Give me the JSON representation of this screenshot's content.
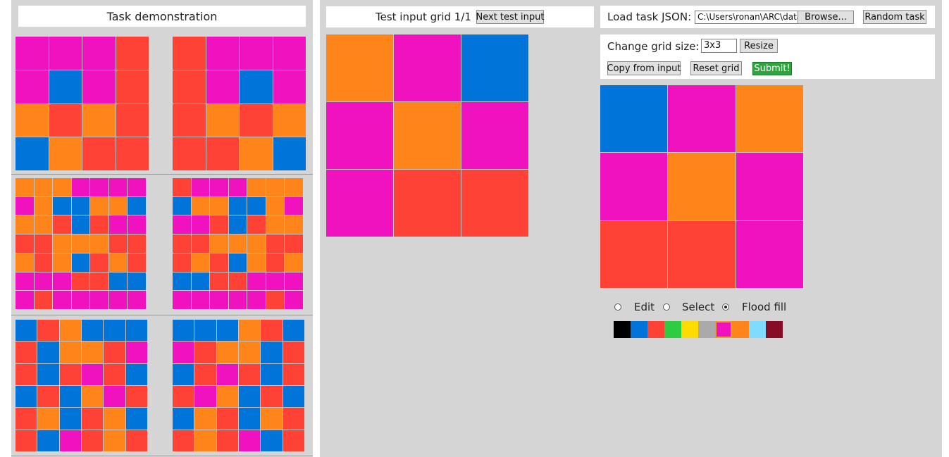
{
  "colors": {
    "0": "#000000",
    "1": "#0074d9",
    "2": "#ff4136",
    "3": "#2ecc40",
    "4": "#ffdc00",
    "5": "#aaaaaa",
    "6": "#f012be",
    "7": "#ff851b",
    "8": "#7fdbff",
    "9": "#870c25"
  },
  "demo": {
    "title": "Task demonstration",
    "pairs": [
      {
        "input": [
          [
            6,
            6,
            6,
            2
          ],
          [
            6,
            1,
            6,
            2
          ],
          [
            7,
            2,
            7,
            2
          ],
          [
            1,
            7,
            2,
            2
          ]
        ],
        "output": [
          [
            2,
            6,
            6,
            6
          ],
          [
            2,
            6,
            1,
            6
          ],
          [
            2,
            7,
            2,
            7
          ],
          [
            2,
            2,
            7,
            1
          ]
        ]
      },
      {
        "input": [
          [
            7,
            7,
            7,
            6,
            6,
            6,
            6
          ],
          [
            6,
            7,
            1,
            1,
            7,
            7,
            1
          ],
          [
            7,
            7,
            2,
            1,
            2,
            6,
            6
          ],
          [
            2,
            2,
            7,
            7,
            7,
            2,
            2
          ],
          [
            7,
            2,
            7,
            1,
            2,
            7,
            2
          ],
          [
            6,
            6,
            6,
            2,
            2,
            1,
            1
          ],
          [
            6,
            2,
            6,
            6,
            6,
            6,
            6
          ]
        ],
        "output": [
          [
            2,
            6,
            6,
            6,
            7,
            7,
            7
          ],
          [
            1,
            7,
            7,
            1,
            1,
            7,
            6
          ],
          [
            6,
            6,
            2,
            1,
            2,
            7,
            7
          ],
          [
            2,
            2,
            7,
            7,
            7,
            2,
            2
          ],
          [
            2,
            7,
            2,
            1,
            7,
            2,
            7
          ],
          [
            1,
            1,
            2,
            2,
            6,
            6,
            6
          ],
          [
            6,
            6,
            6,
            6,
            6,
            2,
            6
          ]
        ]
      },
      {
        "input": [
          [
            1,
            2,
            7,
            1,
            1,
            1
          ],
          [
            2,
            1,
            7,
            7,
            2,
            6
          ],
          [
            2,
            1,
            2,
            6,
            2,
            1
          ],
          [
            1,
            2,
            1,
            7,
            6,
            2
          ],
          [
            2,
            7,
            1,
            2,
            7,
            1
          ],
          [
            2,
            1,
            6,
            2,
            7,
            2
          ]
        ],
        "output": [
          [
            1,
            1,
            1,
            7,
            2,
            1
          ],
          [
            6,
            2,
            7,
            7,
            1,
            2
          ],
          [
            1,
            2,
            6,
            2,
            1,
            2
          ],
          [
            2,
            6,
            7,
            1,
            2,
            1
          ],
          [
            1,
            7,
            2,
            1,
            7,
            2
          ],
          [
            2,
            7,
            2,
            6,
            1,
            2
          ]
        ]
      }
    ]
  },
  "test": {
    "title": "Test input grid 1/1",
    "next_label": "Next test input",
    "grid": [
      [
        7,
        6,
        1
      ],
      [
        6,
        7,
        6
      ],
      [
        6,
        2,
        2
      ]
    ]
  },
  "controls": {
    "load_label": "Load task JSON:",
    "file_path": "C:\\Users\\ronan\\ARC\\data",
    "browse_label": "Browse...",
    "random_label": "Random task",
    "size_label": "Change grid size:",
    "size_value": "3x3",
    "resize_label": "Resize",
    "copy_label": "Copy from input",
    "reset_label": "Reset grid",
    "submit_label": "Submit!",
    "output_grid": [
      [
        1,
        6,
        7
      ],
      [
        6,
        7,
        6
      ],
      [
        2,
        2,
        6
      ]
    ],
    "modes": {
      "edit": "Edit",
      "select": "Select",
      "flood": "Flood fill",
      "active": "flood"
    },
    "palette": [
      "0",
      "1",
      "2",
      "3",
      "4",
      "5",
      "6",
      "7",
      "8",
      "9"
    ],
    "selected_color": "6"
  }
}
